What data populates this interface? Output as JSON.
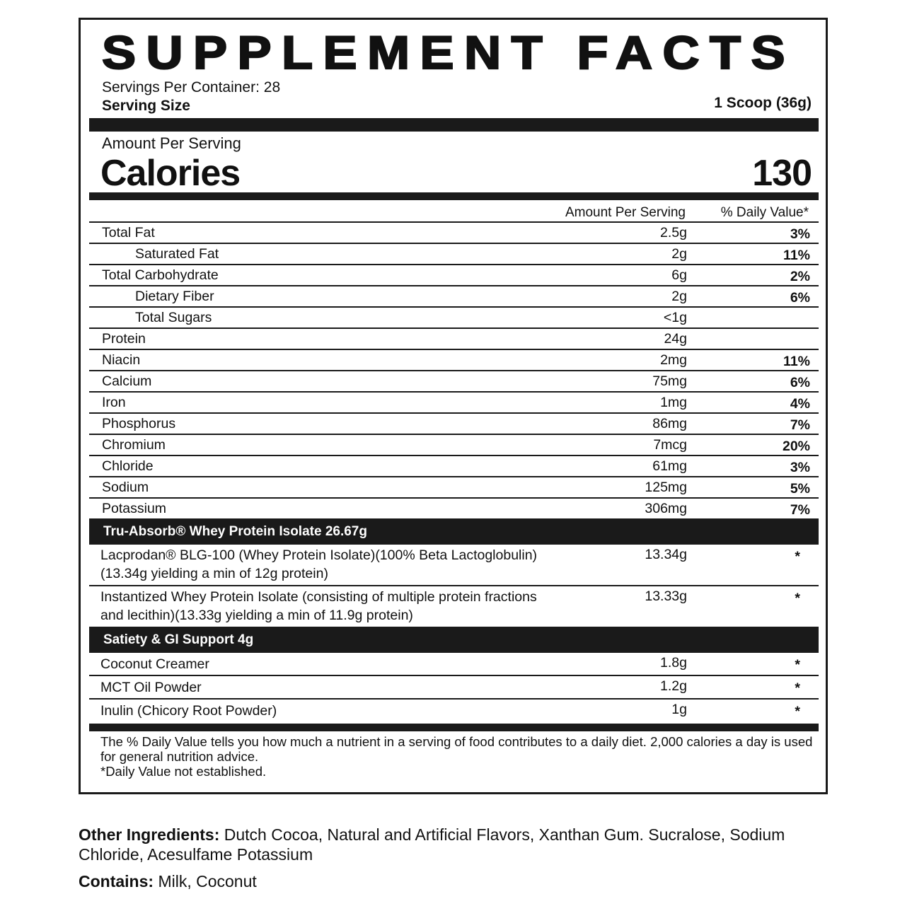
{
  "title": "SUPPLEMENT FACTS",
  "servings_per_container": "Servings Per Container: 28",
  "serving_size_label": "Serving Size",
  "serving_size_value": "1 Scoop (36g)",
  "amount_per_serving": "Amount Per Serving",
  "calories_label": "Calories",
  "calories_value": "130",
  "columns": {
    "amount": "Amount Per Serving",
    "dv": "% Daily Value*"
  },
  "nutrients": [
    {
      "name": "Total Fat",
      "amount": "2.5g",
      "dv": "3%",
      "indent": false
    },
    {
      "name": "Saturated Fat",
      "amount": "2g",
      "dv": "11%",
      "indent": true
    },
    {
      "name": "Total Carbohydrate",
      "amount": "6g",
      "dv": "2%",
      "indent": false
    },
    {
      "name": "Dietary Fiber",
      "amount": "2g",
      "dv": "6%",
      "indent": true
    },
    {
      "name": "Total Sugars",
      "amount": "<1g",
      "dv": "",
      "indent": true
    },
    {
      "name": "Protein",
      "amount": "24g",
      "dv": "",
      "indent": false
    },
    {
      "name": "Niacin",
      "amount": "2mg",
      "dv": "11%",
      "indent": false
    },
    {
      "name": "Calcium",
      "amount": "75mg",
      "dv": "6%",
      "indent": false
    },
    {
      "name": "Iron",
      "amount": "1mg",
      "dv": "4%",
      "indent": false
    },
    {
      "name": "Phosphorus",
      "amount": "86mg",
      "dv": "7%",
      "indent": false
    },
    {
      "name": "Chromium",
      "amount": "7mcg",
      "dv": "20%",
      "indent": false
    },
    {
      "name": "Chloride",
      "amount": "61mg",
      "dv": "3%",
      "indent": false
    },
    {
      "name": "Sodium",
      "amount": "125mg",
      "dv": "5%",
      "indent": false
    },
    {
      "name": "Potassium",
      "amount": "306mg",
      "dv": "7%",
      "indent": false
    }
  ],
  "sections": [
    {
      "title": "Tru-Absorb® Whey Protein Isolate 26.67g",
      "items": [
        {
          "name": "Lacprodan® BLG-100 (Whey Protein Isolate)(100% Beta Lactoglobulin)(13.34g yielding a min of 12g protein)",
          "amount": "13.34g",
          "dv": "*"
        },
        {
          "name": "Instantized Whey Protein Isolate (consisting of multiple protein fractions and lecithin)(13.33g yielding a min of 11.9g protein)",
          "amount": "13.33g",
          "dv": "*"
        }
      ]
    },
    {
      "title": "Satiety & GI Support 4g",
      "items": [
        {
          "name": "Coconut Creamer",
          "amount": "1.8g",
          "dv": "*"
        },
        {
          "name": "MCT Oil Powder",
          "amount": "1.2g",
          "dv": "*"
        },
        {
          "name": "Inulin (Chicory Root Powder)",
          "amount": "1g",
          "dv": "*"
        }
      ]
    }
  ],
  "footnote_1": "The % Daily Value tells you how much a nutrient in a serving of food contributes to a daily diet. 2,000 calories a day is used for general nutrition advice.",
  "footnote_2": "*Daily Value not established.",
  "other_ingredients": {
    "label": "Other Ingredients:",
    "text": " Dutch Cocoa, Natural and Artificial Flavors, Xanthan Gum. Sucralose, Sodium Chloride, Acesulfame Potassium"
  },
  "contains": {
    "label": "Contains:",
    "text": " Milk, Coconut"
  }
}
